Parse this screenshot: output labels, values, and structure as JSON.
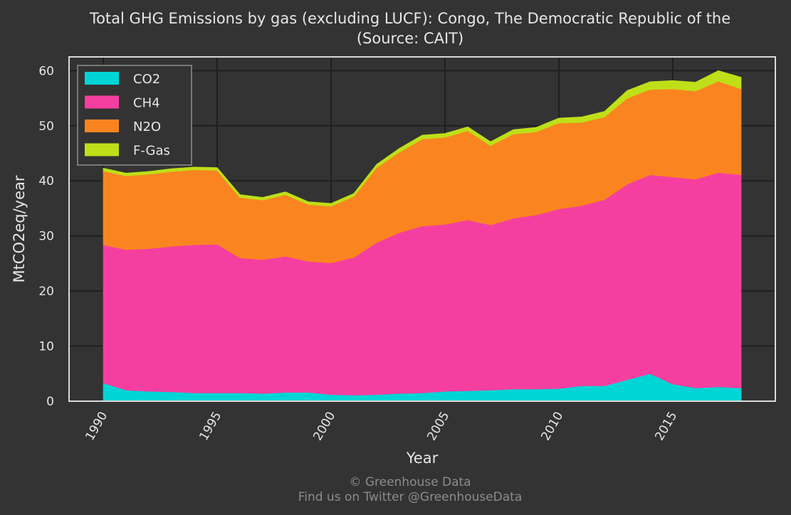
{
  "chart_data": {
    "type": "area",
    "stacked": true,
    "title": "Total GHG Emissions by gas (excluding LUCF): Congo, The Democratic Republic of the",
    "subtitle": "(Source: CAIT)",
    "xlabel": "Year",
    "ylabel": "MtCO2eq/year",
    "xlim": [
      1988.5,
      1990.0
    ],
    "ylim": [
      0,
      62.5
    ],
    "x_ticks": [
      "1990",
      "1995",
      "2000",
      "2005",
      "2010",
      "2015"
    ],
    "y_ticks": [
      "0",
      "10",
      "20",
      "30",
      "40",
      "50",
      "60"
    ],
    "grid": true,
    "legend_position": "top-left",
    "x": [
      1990,
      1991,
      1992,
      1993,
      1994,
      1995,
      1996,
      1997,
      1998,
      1999,
      2000,
      2001,
      2002,
      2003,
      2004,
      2005,
      2006,
      2007,
      2008,
      2009,
      2010,
      2011,
      2012,
      2013,
      2014,
      2015,
      2016,
      2017,
      2018
    ],
    "series": [
      {
        "name": "CO2",
        "color": "#00d5d5",
        "values": [
          3.3,
          2.0,
          1.8,
          1.7,
          1.5,
          1.5,
          1.5,
          1.4,
          1.6,
          1.6,
          1.2,
          1.1,
          1.2,
          1.4,
          1.5,
          1.8,
          1.9,
          2.0,
          2.2,
          2.2,
          2.3,
          2.8,
          2.8,
          3.9,
          5.0,
          3.1,
          2.4,
          2.6,
          2.4
        ]
      },
      {
        "name": "CH4",
        "color": "#f53fa0",
        "values": [
          25.1,
          25.5,
          25.9,
          26.4,
          26.9,
          27.0,
          24.5,
          24.3,
          24.7,
          23.8,
          23.9,
          25.0,
          27.6,
          29.2,
          30.3,
          30.3,
          31.0,
          30.0,
          31.0,
          31.6,
          32.6,
          32.7,
          33.8,
          35.5,
          36.1,
          37.6,
          37.9,
          38.9,
          38.7
        ]
      },
      {
        "name": "N2O",
        "color": "#fa8520",
        "values": [
          13.4,
          13.4,
          13.5,
          13.6,
          13.6,
          13.4,
          11.0,
          10.8,
          11.2,
          10.3,
          10.3,
          11.1,
          13.6,
          14.6,
          15.8,
          15.8,
          16.2,
          14.4,
          15.3,
          15.1,
          15.6,
          15.1,
          15.0,
          15.6,
          15.5,
          16.0,
          16.0,
          16.6,
          15.6
        ]
      },
      {
        "name": "F-Gas",
        "color": "#bfdf18",
        "values": [
          0.5,
          0.5,
          0.5,
          0.5,
          0.5,
          0.5,
          0.5,
          0.5,
          0.5,
          0.5,
          0.5,
          0.5,
          0.6,
          0.7,
          0.7,
          0.7,
          0.7,
          0.7,
          0.8,
          0.8,
          0.9,
          1.0,
          1.0,
          1.4,
          1.4,
          1.5,
          1.6,
          1.9,
          2.1
        ]
      }
    ]
  },
  "footer": {
    "credit": "© Greenhouse Data",
    "twitter": "Find us on Twitter @GreenhouseData"
  }
}
